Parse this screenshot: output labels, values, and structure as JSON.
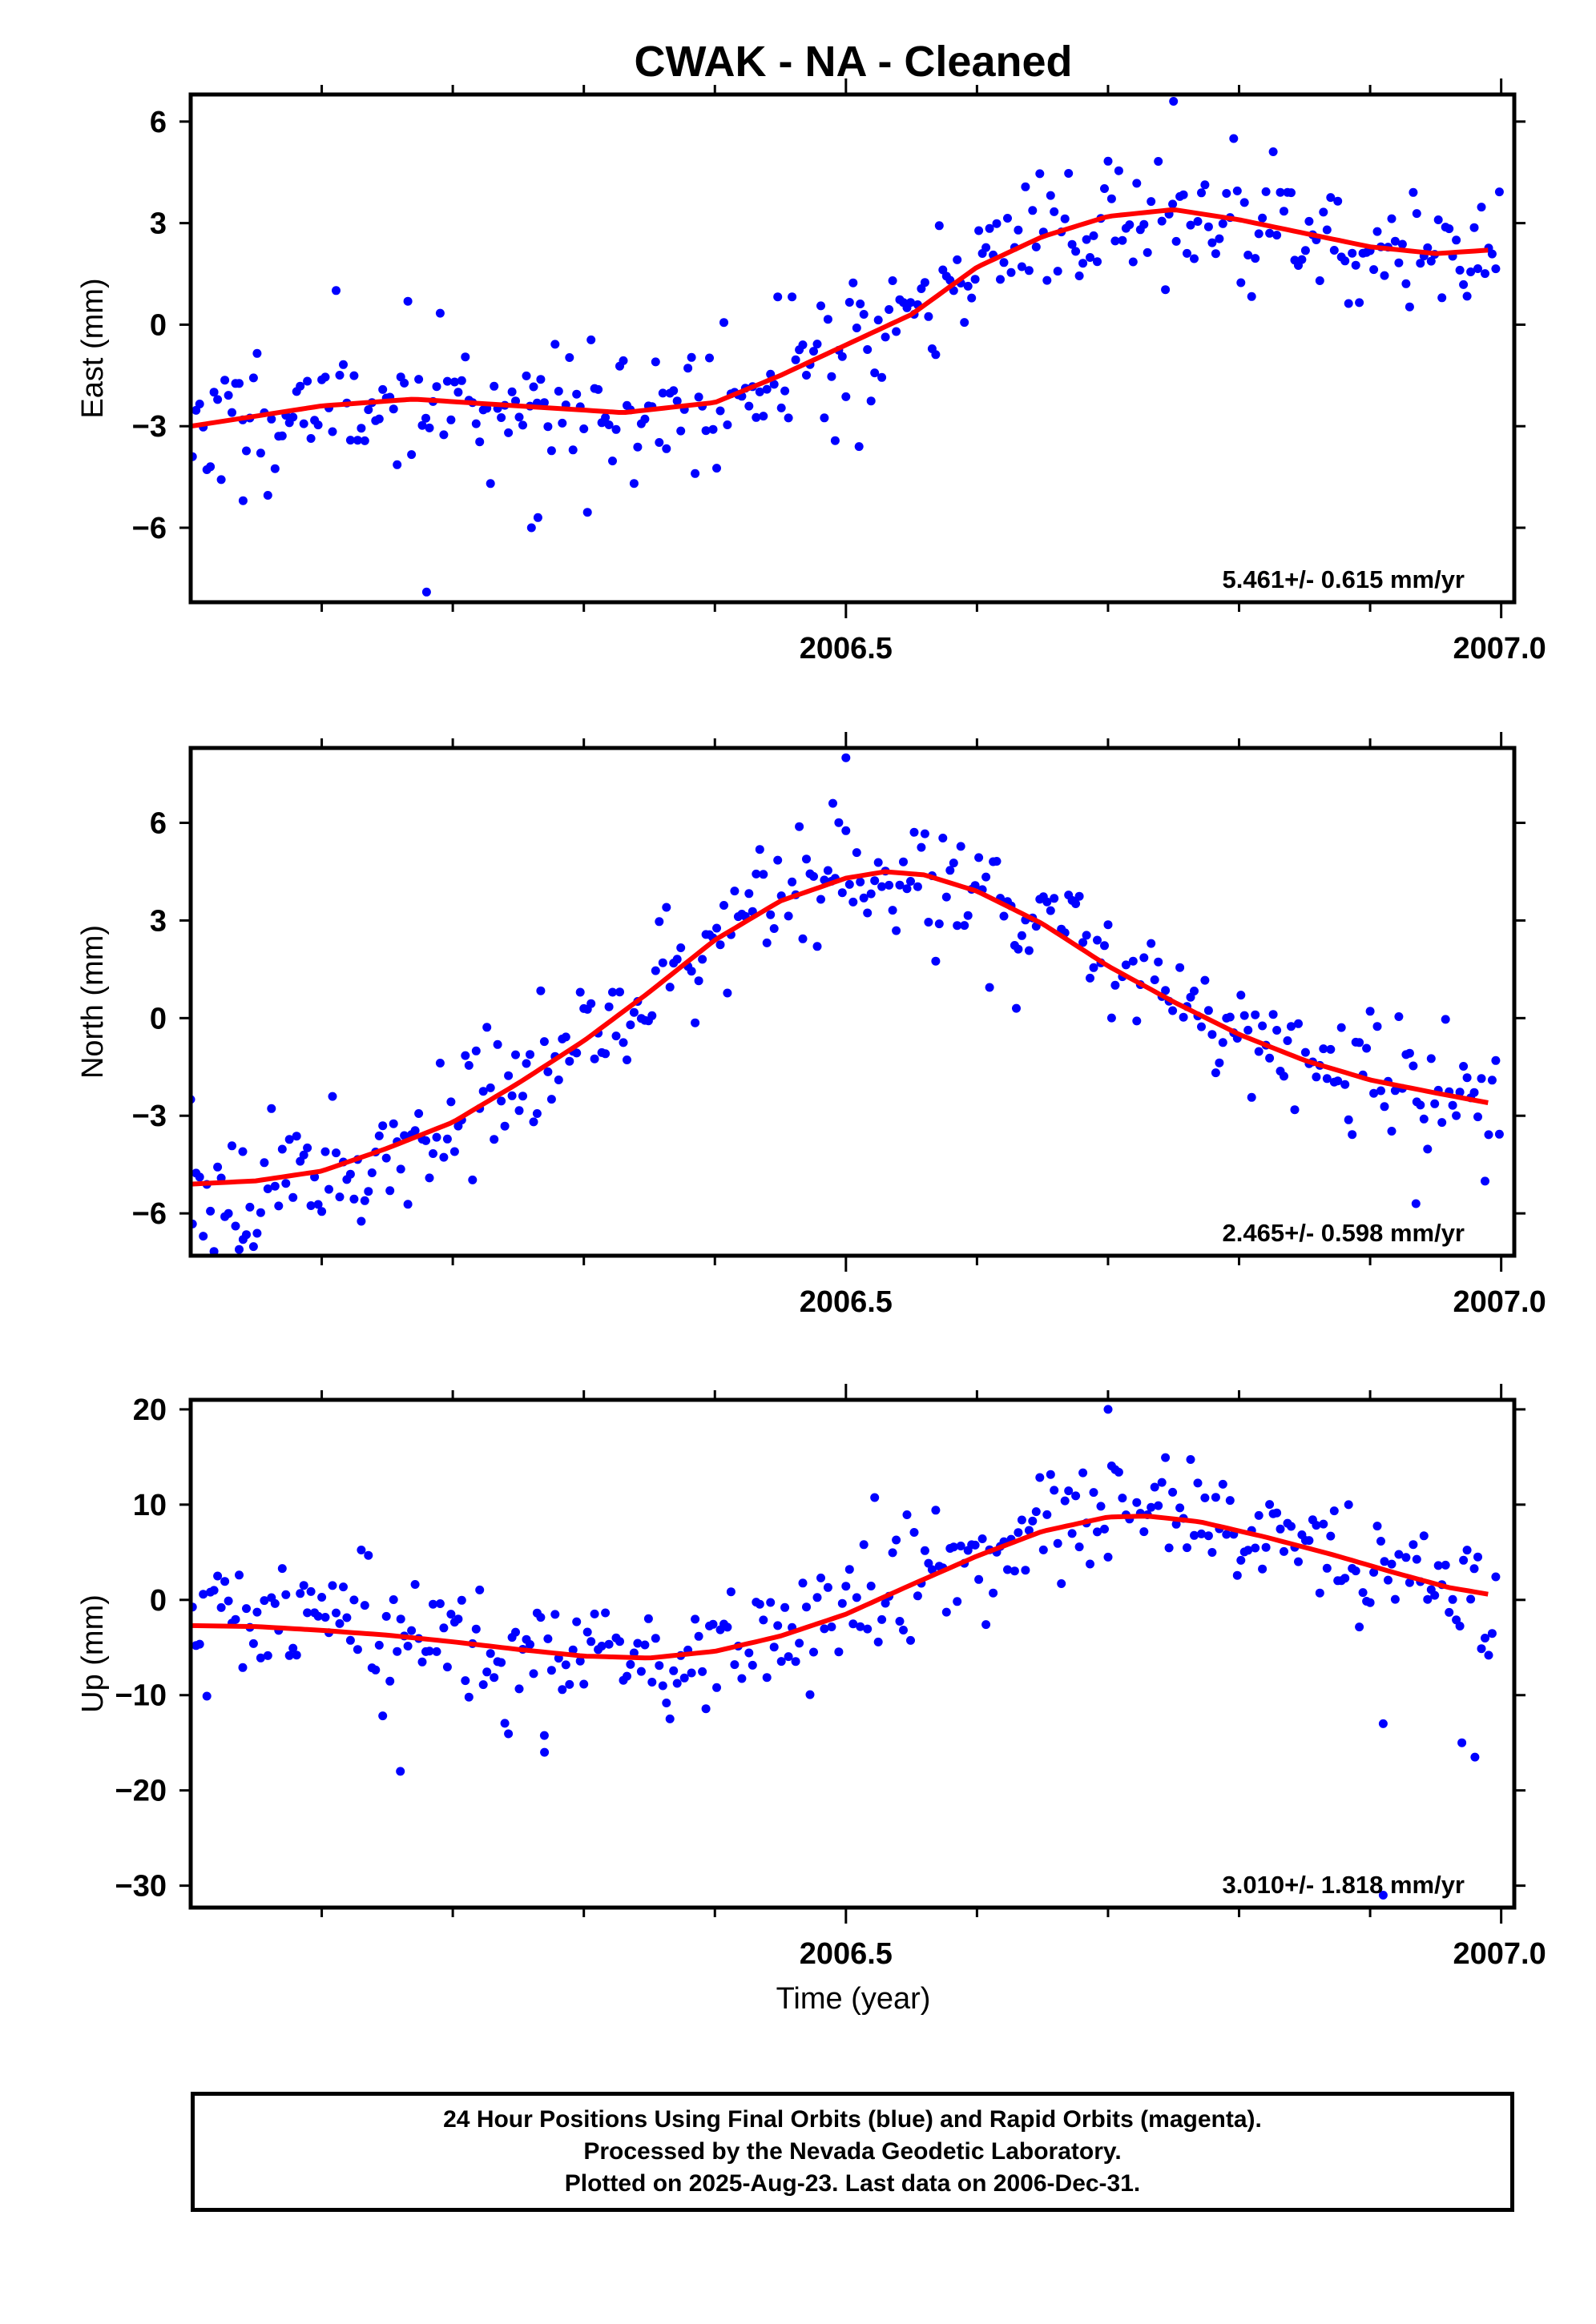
{
  "title": "CWAK  - NA - Cleaned",
  "xlabel": "Time (year)",
  "colors": {
    "final_orbit_points": "#0000ff",
    "fit_curve": "#ff0000",
    "frame": "#000000"
  },
  "footer": {
    "line1": "24 Hour Positions Using Final Orbits (blue) and Rapid Orbits (magenta).",
    "line2": "Processed by the Nevada Geodetic Laboratory.",
    "line3": "Plotted on 2025-Aug-23. Last data on 2006-Dec-31."
  },
  "chart_data": [
    {
      "type": "scatter",
      "name": "east",
      "ylabel": "East (mm)",
      "rate_label": "5.461+/- 0.615 mm/yr",
      "xlim": [
        2006.0,
        2007.01
      ],
      "ylim": [
        -8.2,
        6.8
      ],
      "yticks": [
        -6,
        -3,
        0,
        3,
        6
      ],
      "xticks_labeled": [
        2006.5,
        2007.0
      ],
      "xtick_labels": [
        "2006.5",
        "2007.0"
      ],
      "xticks_minor": [
        2006.1,
        2006.2,
        2006.3,
        2006.4,
        2006.6,
        2006.7,
        2006.8,
        2006.9
      ],
      "ytick_labels": [
        "6",
        "3",
        "0",
        "−3",
        "−6"
      ],
      "noise": {
        "sigma": 0.95,
        "seed": 11
      },
      "outliers": [
        [
          2006.18,
          -7.9
        ],
        [
          2006.26,
          -6.0
        ],
        [
          2006.265,
          -5.7
        ],
        [
          2006.04,
          -5.2
        ],
        [
          2006.51,
          -3.6
        ],
        [
          2006.75,
          6.6
        ]
      ],
      "fit": [
        [
          2006.0,
          -3.0
        ],
        [
          2006.05,
          -2.7
        ],
        [
          2006.1,
          -2.4
        ],
        [
          2006.17,
          -2.2
        ],
        [
          2006.25,
          -2.4
        ],
        [
          2006.33,
          -2.6
        ],
        [
          2006.4,
          -2.3
        ],
        [
          2006.45,
          -1.5
        ],
        [
          2006.5,
          -0.6
        ],
        [
          2006.55,
          0.3
        ],
        [
          2006.6,
          1.7
        ],
        [
          2006.65,
          2.6
        ],
        [
          2006.7,
          3.2
        ],
        [
          2006.75,
          3.4
        ],
        [
          2006.8,
          3.1
        ],
        [
          2006.85,
          2.7
        ],
        [
          2006.9,
          2.3
        ],
        [
          2006.95,
          2.1
        ],
        [
          2006.99,
          2.2
        ]
      ]
    },
    {
      "type": "scatter",
      "name": "north",
      "ylabel": "North (mm)",
      "rate_label": "2.465+/- 0.598 mm/yr",
      "xlim": [
        2006.0,
        2007.01
      ],
      "ylim": [
        -7.3,
        8.3
      ],
      "yticks": [
        -6,
        -3,
        0,
        3,
        6
      ],
      "xticks_labeled": [
        2006.5,
        2007.0
      ],
      "xtick_labels": [
        "2006.5",
        "2007.0"
      ],
      "xticks_minor": [
        2006.1,
        2006.2,
        2006.3,
        2006.4,
        2006.6,
        2006.7,
        2006.8,
        2006.9
      ],
      "ytick_labels": [
        "6",
        "3",
        "0",
        "−3",
        "−6"
      ],
      "noise": {
        "sigma": 0.95,
        "seed": 23
      },
      "outliers": [
        [
          2006.5,
          8.0
        ],
        [
          2006.49,
          6.6
        ],
        [
          2006.0,
          -2.5
        ],
        [
          2006.935,
          -5.7
        ],
        [
          2006.04,
          -6.8
        ],
        [
          2006.63,
          0.3
        ]
      ],
      "fit": [
        [
          2006.0,
          -5.1
        ],
        [
          2006.05,
          -5.0
        ],
        [
          2006.1,
          -4.7
        ],
        [
          2006.15,
          -4.0
        ],
        [
          2006.2,
          -3.2
        ],
        [
          2006.25,
          -2.0
        ],
        [
          2006.3,
          -0.7
        ],
        [
          2006.35,
          0.8
        ],
        [
          2006.4,
          2.4
        ],
        [
          2006.45,
          3.6
        ],
        [
          2006.5,
          4.3
        ],
        [
          2006.53,
          4.5
        ],
        [
          2006.56,
          4.4
        ],
        [
          2006.6,
          3.9
        ],
        [
          2006.65,
          2.9
        ],
        [
          2006.7,
          1.6
        ],
        [
          2006.75,
          0.5
        ],
        [
          2006.8,
          -0.5
        ],
        [
          2006.85,
          -1.3
        ],
        [
          2006.9,
          -1.9
        ],
        [
          2006.95,
          -2.3
        ],
        [
          2006.99,
          -2.6
        ]
      ]
    },
    {
      "type": "scatter",
      "name": "up",
      "ylabel": "Up (mm)",
      "rate_label": "3.010+/- 1.818 mm/yr",
      "xlim": [
        2006.0,
        2007.01
      ],
      "ylim": [
        -32.3,
        21.0
      ],
      "yticks": [
        -30,
        -20,
        -10,
        0,
        10,
        20
      ],
      "xticks_labeled": [
        2006.5,
        2007.0
      ],
      "xtick_labels": [
        "2006.5",
        "2007.0"
      ],
      "xticks_minor": [
        2006.1,
        2006.2,
        2006.3,
        2006.4,
        2006.6,
        2006.7,
        2006.8,
        2006.9
      ],
      "ytick_labels": [
        "20",
        "10",
        "0",
        "−10",
        "−20",
        "−30"
      ],
      "noise": {
        "sigma": 3.6,
        "seed": 37
      },
      "outliers": [
        [
          2006.16,
          -18.0
        ],
        [
          2006.7,
          20.0
        ],
        [
          2006.98,
          -16.5
        ],
        [
          2006.27,
          -16.0
        ],
        [
          2006.91,
          -13.0
        ],
        [
          2006.97,
          -15.0
        ],
        [
          2006.91,
          -31.0
        ]
      ],
      "fit": [
        [
          2006.0,
          -2.7
        ],
        [
          2006.05,
          -2.8
        ],
        [
          2006.1,
          -3.2
        ],
        [
          2006.15,
          -3.7
        ],
        [
          2006.2,
          -4.4
        ],
        [
          2006.25,
          -5.2
        ],
        [
          2006.3,
          -5.9
        ],
        [
          2006.35,
          -6.1
        ],
        [
          2006.4,
          -5.4
        ],
        [
          2006.45,
          -3.8
        ],
        [
          2006.5,
          -1.5
        ],
        [
          2006.55,
          1.6
        ],
        [
          2006.6,
          4.6
        ],
        [
          2006.65,
          7.2
        ],
        [
          2006.7,
          8.7
        ],
        [
          2006.73,
          8.8
        ],
        [
          2006.77,
          8.2
        ],
        [
          2006.82,
          6.6
        ],
        [
          2006.87,
          4.8
        ],
        [
          2006.92,
          2.8
        ],
        [
          2006.96,
          1.3
        ],
        [
          2006.99,
          0.6
        ]
      ]
    }
  ]
}
